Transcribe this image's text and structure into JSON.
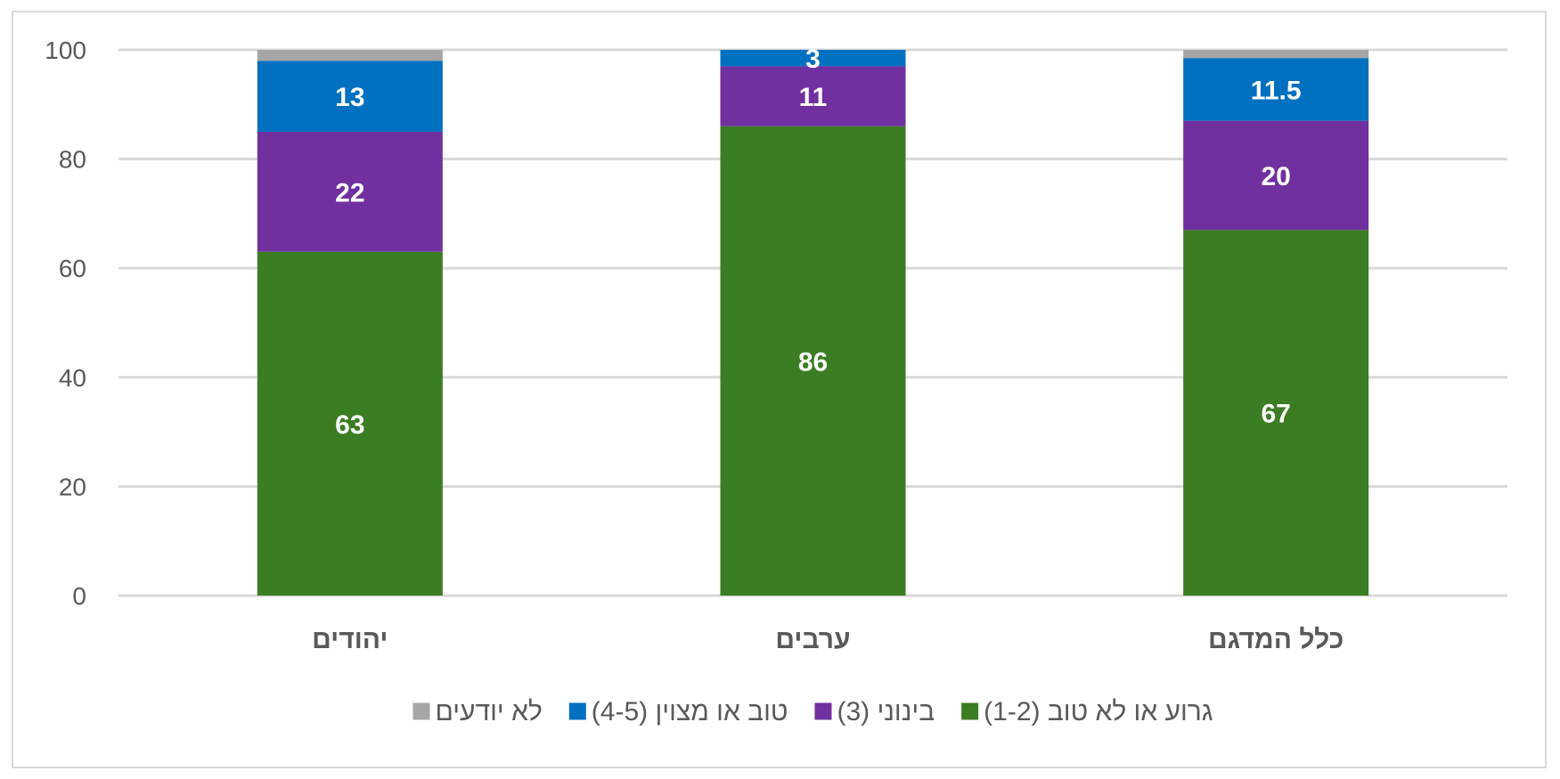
{
  "chart_data": {
    "type": "bar",
    "stacked": true,
    "categories": [
      "יהודים",
      "ערבים",
      "כלל המדגם"
    ],
    "series": [
      {
        "name": "גרוע או לא טוב (1-2)",
        "values": [
          63,
          86,
          67
        ],
        "labels": [
          "63",
          "86",
          "67"
        ],
        "color": "#3a7d22"
      },
      {
        "name": "בינוני (3)",
        "values": [
          22,
          11,
          20
        ],
        "labels": [
          "22",
          "11",
          "20"
        ],
        "color": "#7030a0"
      },
      {
        "name": "טוב או מצוין (4-5)",
        "values": [
          13,
          3,
          11.5
        ],
        "labels": [
          "13",
          "3",
          "11.5"
        ],
        "color": "#0070c0"
      },
      {
        "name": "לא יודעים",
        "values": [
          2,
          0,
          1.5
        ],
        "labels": [
          "",
          "",
          ""
        ],
        "color": "#a6a6a6"
      }
    ],
    "yticks": [
      "0",
      "20",
      "40",
      "60",
      "80",
      "100"
    ],
    "ylim": [
      0,
      100
    ],
    "grid": true,
    "legend_position": "bottom",
    "title": "",
    "xlabel": "",
    "ylabel": ""
  }
}
